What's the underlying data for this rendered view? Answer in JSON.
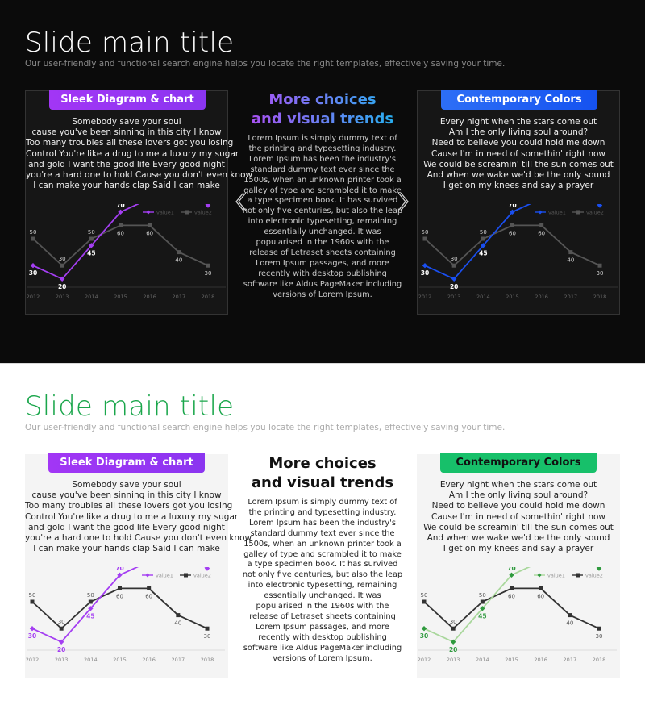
{
  "slides": [
    {
      "theme": "dark",
      "title": "Slide main title",
      "subtitle": "Our user-friendly and functional search engine helps you locate the right templates, effectively saving your time.",
      "left_panel": {
        "label": "Sleek Diagram & chart",
        "lyrics": [
          "Somebody save your soul",
          "cause you've been sinning in this city I know",
          "Too many troubles all these lovers got you losing",
          "Control You're like a drug to me a luxury my sugar",
          "and gold I want the good life Every good night",
          "you're a hard one to hold Cause you don't even know",
          "I can make your hands clap Said I can make"
        ]
      },
      "center": {
        "heading_lines": [
          "More choices",
          "and visual trends"
        ],
        "body": "Lorem Ipsum is simply dummy text of the printing and typesetting industry. Lorem Ipsum has been the industry's standard dummy text ever since the 1500s, when an unknown printer took a galley of type and scrambled it to make a type specimen book. It has survived not only five centuries, but also the leap into electronic typesetting, remaining essentially unchanged. It was popularised in the 1960s with the release of Letraset sheets containing Lorem Ipsum passages, and more recently with desktop publishing software like Aldus PageMaker including versions of Lorem Ipsum."
      },
      "right_panel": {
        "label": "Contemporary Colors",
        "lyrics": [
          "Every night when the stars come out",
          "Am I the only living soul around?",
          "Need to believe you could hold me down",
          "Cause I'm in need of somethin' right now",
          "We could be screamin' till the sun comes out",
          "And when we wake we'd be the only sound",
          "I get on my knees and say a prayer"
        ]
      }
    },
    {
      "theme": "light",
      "title": "Slide main title",
      "subtitle": "Our user-friendly and functional search engine helps you locate the right templates, effectively saving your time.",
      "left_panel": {
        "label": "Sleek Diagram & chart",
        "lyrics": [
          "Somebody save your soul",
          "cause you've been sinning in this city I know",
          "Too many troubles all these lovers got you losing",
          "Control You're like a drug to me a luxury my sugar",
          "and gold I want the good life Every good night",
          "you're a hard one to hold Cause you don't even know",
          "I can make your hands clap Said I can make"
        ]
      },
      "center": {
        "heading_lines": [
          "More choices",
          "and visual trends"
        ],
        "body": "Lorem Ipsum is simply dummy text of the printing and typesetting industry. Lorem Ipsum has been the industry's standard dummy text ever since the 1500s, when an unknown printer took a galley of type and scrambled it to make a type specimen book. It has survived not only five centuries, but also the leap into electronic typesetting, remaining essentially unchanged. It was popularised in the 1960s with the release of Letraset sheets containing Lorem Ipsum passages, and more recently with desktop publishing software like Aldus PageMaker including versions of Lorem Ipsum."
      },
      "right_panel": {
        "label": "Contemporary Colors",
        "lyrics": [
          "Every night when the stars come out",
          "Am I the only living soul around?",
          "Need to believe you could hold me down",
          "Cause I'm in need of somethin' right now",
          "We could be screamin' till the sun comes out",
          "And when we wake we'd be the only sound",
          "I get on my knees and say a prayer"
        ]
      }
    }
  ],
  "chart_data": [
    {
      "type": "line",
      "x": [
        "2012",
        "2013",
        "2014",
        "2015",
        "2016",
        "2017",
        "2018"
      ],
      "series": [
        {
          "name": "value1",
          "values": [
            30,
            20,
            45,
            70,
            80,
            90,
            75
          ],
          "color": "#a43ef2"
        },
        {
          "name": "value2",
          "values": [
            50,
            30,
            50,
            60,
            60,
            40,
            30
          ],
          "color": "#555555"
        }
      ],
      "grid": false,
      "legend": "top-right"
    },
    {
      "type": "line",
      "x": [
        "2012",
        "2013",
        "2014",
        "2015",
        "2016",
        "2017",
        "2018"
      ],
      "series": [
        {
          "name": "value1",
          "values": [
            30,
            20,
            45,
            70,
            80,
            90,
            75
          ],
          "color": "#1a4ff0"
        },
        {
          "name": "value2",
          "values": [
            50,
            30,
            50,
            60,
            60,
            40,
            30
          ],
          "color": "#555555"
        }
      ],
      "grid": false,
      "legend": "top-right"
    },
    {
      "type": "line",
      "x": [
        "2012",
        "2013",
        "2014",
        "2015",
        "2016",
        "2017",
        "2018"
      ],
      "series": [
        {
          "name": "value1",
          "values": [
            30,
            20,
            45,
            70,
            80,
            90,
            75
          ],
          "color": "#a43ef2"
        },
        {
          "name": "value2",
          "values": [
            50,
            30,
            50,
            60,
            60,
            40,
            30
          ],
          "color": "#333333"
        }
      ],
      "grid": false,
      "legend": "top-right"
    },
    {
      "type": "line",
      "x": [
        "2012",
        "2013",
        "2014",
        "2015",
        "2016",
        "2017",
        "2018"
      ],
      "series": [
        {
          "name": "value1",
          "values": [
            30,
            20,
            45,
            70,
            80,
            90,
            75
          ],
          "color": "#2f9a3e",
          "line_color": "#a9d79c"
        },
        {
          "name": "value2",
          "values": [
            50,
            30,
            50,
            60,
            60,
            40,
            30
          ],
          "color": "#333333"
        }
      ],
      "grid": false,
      "legend": "top-right"
    }
  ]
}
